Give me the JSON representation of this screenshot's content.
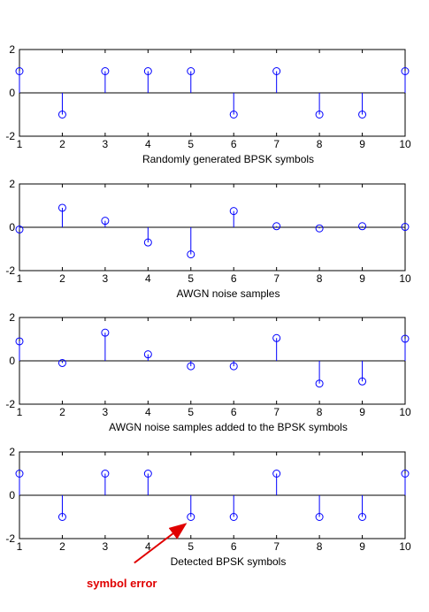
{
  "chart_data": [
    {
      "type": "stem",
      "xlabel": "Randomly generated BPSK symbols",
      "x": [
        1,
        2,
        3,
        4,
        5,
        6,
        7,
        8,
        9,
        10
      ],
      "values": [
        1,
        -1,
        1,
        1,
        1,
        -1,
        1,
        -1,
        -1,
        1
      ],
      "xlim": [
        1,
        10
      ],
      "ylim": [
        -2,
        2
      ],
      "xticks": [
        "1",
        "2",
        "3",
        "4",
        "5",
        "6",
        "7",
        "8",
        "9",
        "10"
      ],
      "yticks": [
        "2",
        "0",
        "-2"
      ],
      "color": "#0000ff"
    },
    {
      "type": "stem",
      "xlabel": "AWGN noise samples",
      "x": [
        1,
        2,
        3,
        4,
        5,
        6,
        7,
        8,
        9,
        10
      ],
      "values": [
        -0.1,
        0.9,
        0.3,
        -0.7,
        -1.25,
        0.75,
        0.05,
        -0.05,
        0.05,
        0.02
      ],
      "xlim": [
        1,
        10
      ],
      "ylim": [
        -2,
        2
      ],
      "xticks": [
        "1",
        "2",
        "3",
        "4",
        "5",
        "6",
        "7",
        "8",
        "9",
        "10"
      ],
      "yticks": [
        "2",
        "0",
        "-2"
      ],
      "color": "#0000ff"
    },
    {
      "type": "stem",
      "xlabel": "AWGN noise samples added to the BPSK symbols",
      "x": [
        1,
        2,
        3,
        4,
        5,
        6,
        7,
        8,
        9,
        10
      ],
      "values": [
        0.9,
        -0.1,
        1.3,
        0.3,
        -0.25,
        -0.25,
        1.05,
        -1.05,
        -0.95,
        1.02
      ],
      "xlim": [
        1,
        10
      ],
      "ylim": [
        -2,
        2
      ],
      "xticks": [
        "1",
        "2",
        "3",
        "4",
        "5",
        "6",
        "7",
        "8",
        "9",
        "10"
      ],
      "yticks": [
        "2",
        "0",
        "-2"
      ],
      "color": "#0000ff"
    },
    {
      "type": "stem",
      "xlabel": "Detected BPSK symbols",
      "x": [
        1,
        2,
        3,
        4,
        5,
        6,
        7,
        8,
        9,
        10
      ],
      "values": [
        1,
        -1,
        1,
        1,
        -1,
        -1,
        1,
        -1,
        -1,
        1
      ],
      "xlim": [
        1,
        10
      ],
      "ylim": [
        -2,
        2
      ],
      "xticks": [
        "1",
        "2",
        "3",
        "4",
        "5",
        "6",
        "7",
        "8",
        "9",
        "10"
      ],
      "yticks": [
        "2",
        "0",
        "-2"
      ],
      "color": "#0000ff"
    }
  ],
  "annotation": {
    "text": "symbol error",
    "points_to_x": 5,
    "points_to_y": -1,
    "color": "#e00000"
  }
}
